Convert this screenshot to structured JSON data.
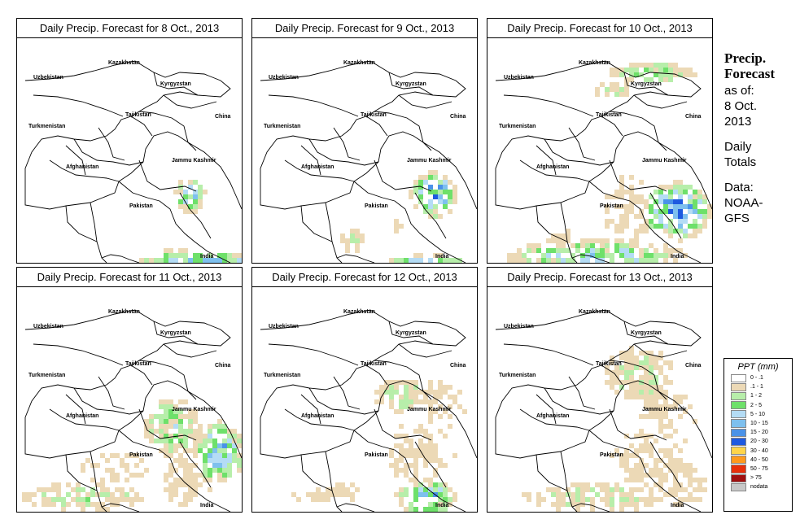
{
  "panels": [
    {
      "title": "Daily Precip. Forecast for  8 Oct., 2013"
    },
    {
      "title": "Daily Precip. Forecast for  9 Oct., 2013"
    },
    {
      "title": "Daily Precip. Forecast for  10 Oct., 2013"
    },
    {
      "title": "Daily Precip. Forecast for  11 Oct., 2013"
    },
    {
      "title": "Daily Precip. Forecast for  12 Oct., 2013"
    },
    {
      "title": "Daily Precip. Forecast for  13 Oct., 2013"
    }
  ],
  "map_labels": {
    "kazakhstan": "Kazakhstan",
    "uzbekistan": "Uzbekistan",
    "kyrgyzstan": "Kyrgyzstan",
    "tajikistan": "Tajikistan",
    "china": "China",
    "turkmenistan": "Turkmenistan",
    "jammu_kashmir": "Jammu Kashmir",
    "afghanistan": "Afghanistan",
    "pakistan": "Pakistan",
    "india": "India"
  },
  "sidebar": {
    "heading_line1": "Precip.",
    "heading_line2": "Forecast",
    "asof_line1": "as of:",
    "asof_line2": "8 Oct.",
    "asof_line3": "2013",
    "totals_line1": "Daily",
    "totals_line2": "Totals",
    "data_line1": "Data:",
    "data_line2": "NOAA-",
    "data_line3": "GFS"
  },
  "legend": {
    "title": "PPT (mm)",
    "items": [
      {
        "label": "0 - .1",
        "color": "#ffffff"
      },
      {
        "label": ".1 - 1",
        "color": "#ecd9b6"
      },
      {
        "label": "1 - 2",
        "color": "#b7eeaa"
      },
      {
        "label": "2 - 5",
        "color": "#6ee06a"
      },
      {
        "label": "5 - 10",
        "color": "#b4dcf5"
      },
      {
        "label": "10 - 15",
        "color": "#7ec0ee"
      },
      {
        "label": "15 - 20",
        "color": "#4a92e8"
      },
      {
        "label": "20 - 30",
        "color": "#1e5ae0"
      },
      {
        "label": "30 - 40",
        "color": "#ffd54a"
      },
      {
        "label": "40 - 50",
        "color": "#ff9a1e"
      },
      {
        "label": "50 - 75",
        "color": "#e8300a"
      },
      {
        "label": "> 75",
        "color": "#a01010"
      },
      {
        "label": "nodata",
        "color": "#c8c8c8"
      }
    ]
  }
}
